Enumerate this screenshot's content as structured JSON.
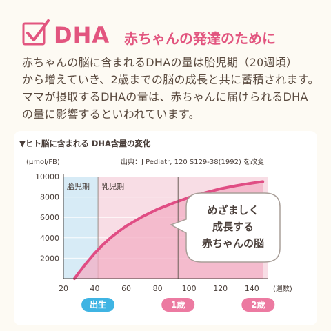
{
  "header": {
    "title": "DHA",
    "subtitle": "赤ちゃんの発達のために",
    "accent_color": "#e2557f"
  },
  "body": {
    "lines": [
      "赤ちゃんの脳に含まれるDHAの量は胎児期（20週頃）",
      "から増えていき、2歳までの脳の成長と共に蓄積されます。",
      "ママが摂取するDHAの量は、赤ちゃんに届けられるDHA",
      "の量に影響するといわれています。"
    ]
  },
  "chart_data": {
    "type": "area",
    "title": "▼ヒト脳に含まれる DHA含量の変化",
    "ylabel": "(µmol/FB)",
    "xlabel": "(週数)",
    "source": "出典：J Pediatr, 120 S129-38(1992) を改変",
    "xlim": [
      20,
      150
    ],
    "ylim": [
      0,
      10000
    ],
    "x_ticks": [
      20,
      40,
      60,
      80,
      100,
      120,
      140
    ],
    "y_ticks": [
      2000,
      4000,
      6000,
      8000,
      10000
    ],
    "series": [
      {
        "x": [
          27,
          30,
          35,
          40,
          45,
          50,
          55,
          60,
          70,
          80,
          90,
          100,
          110,
          120,
          130,
          140,
          147
        ],
        "y": [
          0,
          620,
          1600,
          2500,
          3300,
          4000,
          4600,
          5150,
          6050,
          6800,
          7400,
          7950,
          8400,
          8800,
          9100,
          9350,
          9500
        ]
      }
    ],
    "periods": [
      {
        "label": "胎児期",
        "start": 20,
        "end": 42,
        "color": "#d7ebf6"
      },
      {
        "label": "乳児期",
        "start": 42,
        "end": 150,
        "color": "#f8dde5"
      }
    ],
    "vline_x": 93,
    "annotation": [
      "めざましく",
      "成長する",
      "赤ちゃんの脳"
    ],
    "markers": [
      {
        "label": "出生",
        "x": 42,
        "color": "#3fb4e3"
      },
      {
        "label": "1歳",
        "x": 93,
        "color": "#ec7aa1"
      },
      {
        "label": "2歳",
        "x": 144,
        "color": "#ec7aa1"
      }
    ],
    "line_color": "#e04d84",
    "area_color": "#f3afc4"
  }
}
